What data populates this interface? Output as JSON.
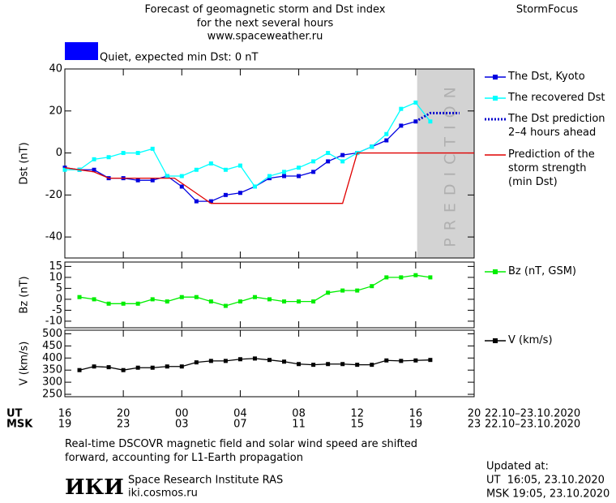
{
  "header": {
    "title_lines": [
      "Forecast of geomagnetic storm and Dst index",
      "for the next several hours",
      "www.spaceweather.ru"
    ],
    "brand": "StormFocus",
    "status": "Quiet, expected min Dst: 0 nT",
    "status_color": "#0000ff"
  },
  "chart_data": [
    {
      "type": "line",
      "ylabel": "Dst (nT)",
      "xlim": [
        0,
        28
      ],
      "ylim": [
        -50,
        40
      ],
      "yticks": [
        -40,
        -20,
        0,
        20,
        40
      ],
      "highlight": {
        "xlim": [
          24.1,
          28
        ],
        "label": "PREDICTION",
        "color": "#d3d3d3"
      },
      "series": [
        {
          "name": "The Dst, Kyoto",
          "color": "#0000e0",
          "style": "line-markers",
          "x": [
            0,
            1,
            2,
            3,
            4,
            5,
            6,
            7,
            8,
            9,
            10,
            11,
            12,
            13,
            14,
            15,
            16,
            17,
            18,
            19,
            20,
            21,
            22,
            23,
            24
          ],
          "values": [
            -7,
            -8,
            -8,
            -12,
            -12,
            -13,
            -13,
            -11,
            -16,
            -23,
            -23,
            -20,
            -19,
            -16,
            -12,
            -11,
            -11,
            -9,
            -4,
            -1,
            0,
            3,
            6,
            13,
            15
          ]
        },
        {
          "name": "The recovered Dst",
          "color": "#00ffff",
          "style": "line-markers",
          "x": [
            0,
            1,
            2,
            3,
            4,
            5,
            6,
            7,
            8,
            9,
            10,
            11,
            12,
            13,
            14,
            15,
            16,
            17,
            18,
            19,
            20,
            21,
            22,
            23,
            24,
            25
          ],
          "values": [
            -8,
            -8,
            -3,
            -2,
            0,
            0,
            2,
            -11,
            -11,
            -8,
            -5,
            -8,
            -6,
            -16,
            -11,
            -9,
            -7,
            -4,
            0,
            -4,
            0,
            3,
            9,
            21,
            24,
            15
          ]
        },
        {
          "name": "The Dst prediction\n2–4 hours ahead",
          "color": "#0000cc",
          "style": "dotted",
          "x": [
            24,
            25,
            27
          ],
          "values": [
            15,
            19,
            19
          ]
        },
        {
          "name": "Prediction of the\nstorm strength\n(min Dst)",
          "color": "#e00000",
          "style": "line",
          "x": [
            0,
            2,
            3,
            7.5,
            10,
            19,
            20,
            28
          ],
          "values": [
            -7,
            -9,
            -12,
            -12,
            -24,
            -24,
            0,
            0
          ]
        }
      ]
    },
    {
      "type": "line",
      "ylabel": "Bz (nT)",
      "xlim": [
        0,
        28
      ],
      "ylim": [
        -13,
        17
      ],
      "yticks": [
        -10,
        -5,
        0,
        5,
        10,
        15
      ],
      "series": [
        {
          "name": "Bz (nT, GSM)",
          "color": "#00ee00",
          "style": "line-markers",
          "x": [
            1,
            2,
            3,
            4,
            5,
            6,
            7,
            8,
            9,
            10,
            11,
            12,
            13,
            14,
            15,
            16,
            17,
            18,
            19,
            20,
            21,
            22,
            23,
            24,
            25
          ],
          "values": [
            1,
            0,
            -2,
            -2,
            -2,
            0,
            -1,
            1,
            1,
            -1,
            -3,
            -1,
            1,
            0,
            -1,
            -1,
            -1,
            3,
            4,
            4,
            6,
            10,
            10,
            11,
            10
          ]
        }
      ]
    },
    {
      "type": "line",
      "ylabel": "V (km/s)",
      "xlim": [
        0,
        28
      ],
      "ylim": [
        240,
        515
      ],
      "yticks": [
        250,
        300,
        350,
        400,
        450,
        500
      ],
      "xlabel": "UT",
      "x2label": "MSK",
      "x_date": "22.10–23.10.2020",
      "x2_date": "22.10–23.10.2020",
      "xticks": [
        {
          "value": 0,
          "label": "16"
        },
        {
          "value": 4,
          "label": "20"
        },
        {
          "value": 8,
          "label": "00"
        },
        {
          "value": 12,
          "label": "04"
        },
        {
          "value": 16,
          "label": "08"
        },
        {
          "value": 20,
          "label": "12"
        },
        {
          "value": 24,
          "label": "16"
        },
        {
          "value": 28,
          "label": "20"
        }
      ],
      "x2ticks": [
        {
          "value": 0,
          "label": "19"
        },
        {
          "value": 4,
          "label": "23"
        },
        {
          "value": 8,
          "label": "03"
        },
        {
          "value": 12,
          "label": "07"
        },
        {
          "value": 16,
          "label": "11"
        },
        {
          "value": 20,
          "label": "15"
        },
        {
          "value": 24,
          "label": "19"
        },
        {
          "value": 28,
          "label": "23"
        }
      ],
      "series": [
        {
          "name": "V (km/s)",
          "color": "#000000",
          "style": "line-markers",
          "x": [
            1,
            2,
            3,
            4,
            5,
            6,
            7,
            8,
            9,
            10,
            11,
            12,
            13,
            14,
            15,
            16,
            17,
            18,
            19,
            20,
            21,
            22,
            23,
            24,
            25
          ],
          "values": [
            350,
            365,
            362,
            350,
            360,
            360,
            365,
            365,
            382,
            388,
            388,
            395,
            398,
            392,
            385,
            375,
            372,
            375,
            375,
            372,
            372,
            390,
            388,
            390,
            392
          ]
        }
      ]
    }
  ],
  "footer": {
    "note": "Real-time DSCOVR magnetic field and solar wind speed are shifted\nforward, accounting for L1-Earth propagation",
    "logo": "ИКИ",
    "institute": "Space Research Institute RAS",
    "site": "iki.cosmos.ru",
    "updated": "Updated at:",
    "updated_ut": "UT  16:05, 23.10.2020",
    "updated_msk": "MSK 19:05, 23.10.2020"
  }
}
